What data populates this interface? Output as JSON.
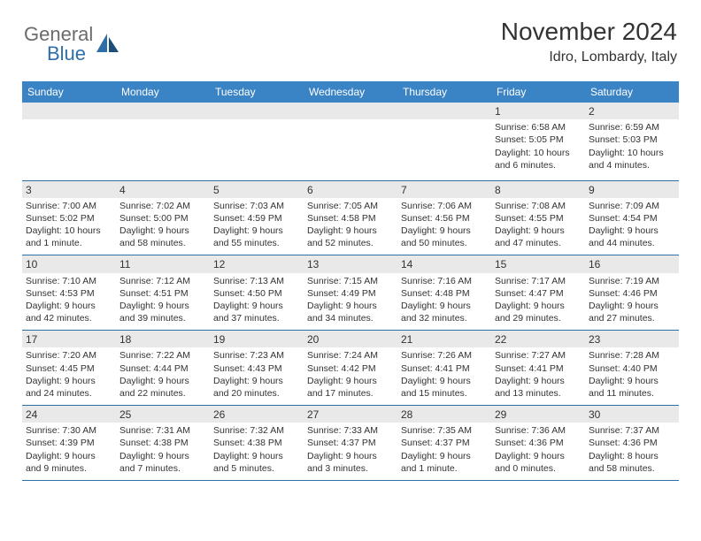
{
  "logo": {
    "general": "General",
    "blue": "Blue"
  },
  "title": "November 2024",
  "location": "Idro, Lombardy, Italy",
  "colors": {
    "headerBg": "#3a83c4",
    "headerText": "#ffffff",
    "dayBarBg": "#e9e9e9",
    "border": "#2f6fa8",
    "logoGray": "#6b6b6b",
    "logoBlue": "#2f6fa8"
  },
  "dayHeaders": [
    "Sunday",
    "Monday",
    "Tuesday",
    "Wednesday",
    "Thursday",
    "Friday",
    "Saturday"
  ],
  "weeks": [
    [
      {
        "n": "",
        "lines": []
      },
      {
        "n": "",
        "lines": []
      },
      {
        "n": "",
        "lines": []
      },
      {
        "n": "",
        "lines": []
      },
      {
        "n": "",
        "lines": []
      },
      {
        "n": "1",
        "lines": [
          "Sunrise: 6:58 AM",
          "Sunset: 5:05 PM",
          "Daylight: 10 hours and 6 minutes."
        ]
      },
      {
        "n": "2",
        "lines": [
          "Sunrise: 6:59 AM",
          "Sunset: 5:03 PM",
          "Daylight: 10 hours and 4 minutes."
        ]
      }
    ],
    [
      {
        "n": "3",
        "lines": [
          "Sunrise: 7:00 AM",
          "Sunset: 5:02 PM",
          "Daylight: 10 hours and 1 minute."
        ]
      },
      {
        "n": "4",
        "lines": [
          "Sunrise: 7:02 AM",
          "Sunset: 5:00 PM",
          "Daylight: 9 hours and 58 minutes."
        ]
      },
      {
        "n": "5",
        "lines": [
          "Sunrise: 7:03 AM",
          "Sunset: 4:59 PM",
          "Daylight: 9 hours and 55 minutes."
        ]
      },
      {
        "n": "6",
        "lines": [
          "Sunrise: 7:05 AM",
          "Sunset: 4:58 PM",
          "Daylight: 9 hours and 52 minutes."
        ]
      },
      {
        "n": "7",
        "lines": [
          "Sunrise: 7:06 AM",
          "Sunset: 4:56 PM",
          "Daylight: 9 hours and 50 minutes."
        ]
      },
      {
        "n": "8",
        "lines": [
          "Sunrise: 7:08 AM",
          "Sunset: 4:55 PM",
          "Daylight: 9 hours and 47 minutes."
        ]
      },
      {
        "n": "9",
        "lines": [
          "Sunrise: 7:09 AM",
          "Sunset: 4:54 PM",
          "Daylight: 9 hours and 44 minutes."
        ]
      }
    ],
    [
      {
        "n": "10",
        "lines": [
          "Sunrise: 7:10 AM",
          "Sunset: 4:53 PM",
          "Daylight: 9 hours and 42 minutes."
        ]
      },
      {
        "n": "11",
        "lines": [
          "Sunrise: 7:12 AM",
          "Sunset: 4:51 PM",
          "Daylight: 9 hours and 39 minutes."
        ]
      },
      {
        "n": "12",
        "lines": [
          "Sunrise: 7:13 AM",
          "Sunset: 4:50 PM",
          "Daylight: 9 hours and 37 minutes."
        ]
      },
      {
        "n": "13",
        "lines": [
          "Sunrise: 7:15 AM",
          "Sunset: 4:49 PM",
          "Daylight: 9 hours and 34 minutes."
        ]
      },
      {
        "n": "14",
        "lines": [
          "Sunrise: 7:16 AM",
          "Sunset: 4:48 PM",
          "Daylight: 9 hours and 32 minutes."
        ]
      },
      {
        "n": "15",
        "lines": [
          "Sunrise: 7:17 AM",
          "Sunset: 4:47 PM",
          "Daylight: 9 hours and 29 minutes."
        ]
      },
      {
        "n": "16",
        "lines": [
          "Sunrise: 7:19 AM",
          "Sunset: 4:46 PM",
          "Daylight: 9 hours and 27 minutes."
        ]
      }
    ],
    [
      {
        "n": "17",
        "lines": [
          "Sunrise: 7:20 AM",
          "Sunset: 4:45 PM",
          "Daylight: 9 hours and 24 minutes."
        ]
      },
      {
        "n": "18",
        "lines": [
          "Sunrise: 7:22 AM",
          "Sunset: 4:44 PM",
          "Daylight: 9 hours and 22 minutes."
        ]
      },
      {
        "n": "19",
        "lines": [
          "Sunrise: 7:23 AM",
          "Sunset: 4:43 PM",
          "Daylight: 9 hours and 20 minutes."
        ]
      },
      {
        "n": "20",
        "lines": [
          "Sunrise: 7:24 AM",
          "Sunset: 4:42 PM",
          "Daylight: 9 hours and 17 minutes."
        ]
      },
      {
        "n": "21",
        "lines": [
          "Sunrise: 7:26 AM",
          "Sunset: 4:41 PM",
          "Daylight: 9 hours and 15 minutes."
        ]
      },
      {
        "n": "22",
        "lines": [
          "Sunrise: 7:27 AM",
          "Sunset: 4:41 PM",
          "Daylight: 9 hours and 13 minutes."
        ]
      },
      {
        "n": "23",
        "lines": [
          "Sunrise: 7:28 AM",
          "Sunset: 4:40 PM",
          "Daylight: 9 hours and 11 minutes."
        ]
      }
    ],
    [
      {
        "n": "24",
        "lines": [
          "Sunrise: 7:30 AM",
          "Sunset: 4:39 PM",
          "Daylight: 9 hours and 9 minutes."
        ]
      },
      {
        "n": "25",
        "lines": [
          "Sunrise: 7:31 AM",
          "Sunset: 4:38 PM",
          "Daylight: 9 hours and 7 minutes."
        ]
      },
      {
        "n": "26",
        "lines": [
          "Sunrise: 7:32 AM",
          "Sunset: 4:38 PM",
          "Daylight: 9 hours and 5 minutes."
        ]
      },
      {
        "n": "27",
        "lines": [
          "Sunrise: 7:33 AM",
          "Sunset: 4:37 PM",
          "Daylight: 9 hours and 3 minutes."
        ]
      },
      {
        "n": "28",
        "lines": [
          "Sunrise: 7:35 AM",
          "Sunset: 4:37 PM",
          "Daylight: 9 hours and 1 minute."
        ]
      },
      {
        "n": "29",
        "lines": [
          "Sunrise: 7:36 AM",
          "Sunset: 4:36 PM",
          "Daylight: 9 hours and 0 minutes."
        ]
      },
      {
        "n": "30",
        "lines": [
          "Sunrise: 7:37 AM",
          "Sunset: 4:36 PM",
          "Daylight: 8 hours and 58 minutes."
        ]
      }
    ]
  ]
}
